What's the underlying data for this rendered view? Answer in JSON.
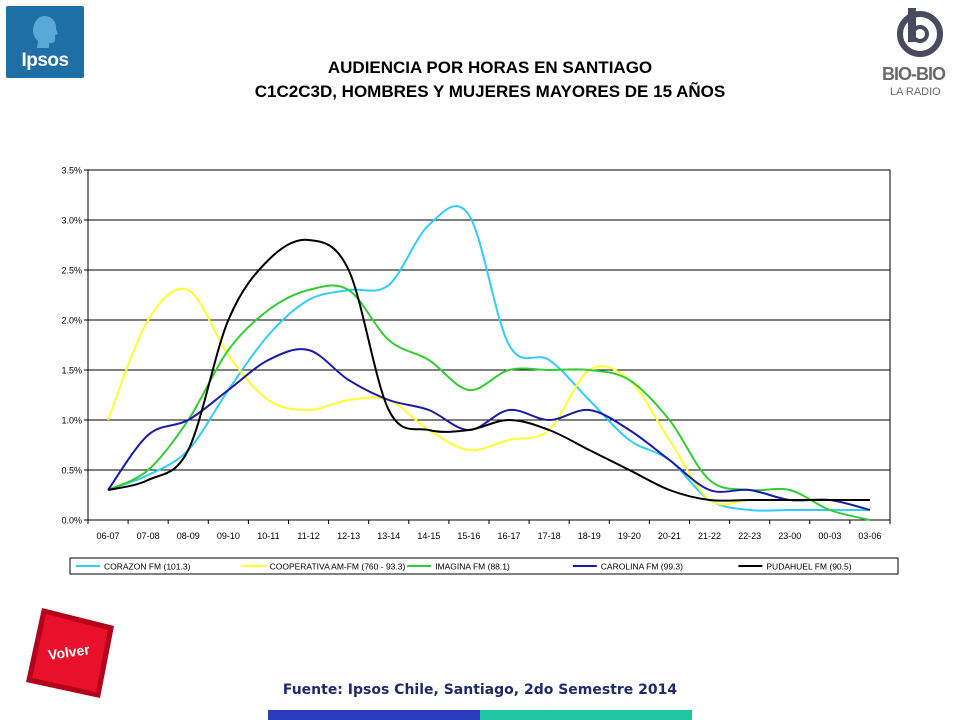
{
  "branding": {
    "ipsos_logo": "Ipsos",
    "biobio_name": "BIO-BIO",
    "biobio_tag": "LA RADIO"
  },
  "header": {
    "title_line1": "AUDIENCIA POR HORAS EN SANTIAGO",
    "title_line2": "C1C2C3D, HOMBRES Y MUJERES MAYORES DE 15 AÑOS"
  },
  "footer": {
    "source": "Fuente: Ipsos Chile, Santiago, 2do Semestre 2014",
    "back_button": "Volver"
  },
  "chart_data": {
    "type": "line",
    "title": "AUDIENCIA POR HORAS EN SANTIAGO",
    "xlabel": "",
    "ylabel": "",
    "ylim": [
      0,
      0.035
    ],
    "y_ticks": [
      "0.0%",
      "0.5%",
      "1.0%",
      "1.5%",
      "2.0%",
      "2.5%",
      "3.0%",
      "3.5%"
    ],
    "grid": true,
    "legend_position": "bottom",
    "categories": [
      "06-07",
      "07-08",
      "08-09",
      "09-10",
      "10-11",
      "11-12",
      "12-13",
      "13-14",
      "14-15",
      "15-16",
      "16-17",
      "17-18",
      "18-19",
      "19-20",
      "20-21",
      "21-22",
      "22-23",
      "23-00",
      "00-03",
      "03-06"
    ],
    "series": [
      {
        "name": "CORAZON FM (101.3)",
        "color": "#33ccff",
        "values": [
          0.003,
          0.0045,
          0.007,
          0.013,
          0.0185,
          0.022,
          0.023,
          0.0235,
          0.0295,
          0.0305,
          0.0175,
          0.016,
          0.012,
          0.008,
          0.006,
          0.002,
          0.001,
          0.001,
          0.001,
          0.001
        ]
      },
      {
        "name": "COOPERATIVA AM-FM (760 - 93.3)",
        "color": "#ffff33",
        "values": [
          0.01,
          0.02,
          0.023,
          0.0165,
          0.012,
          0.011,
          0.012,
          0.012,
          0.009,
          0.007,
          0.008,
          0.009,
          0.015,
          0.014,
          0.008,
          0.002,
          0.002,
          0.002,
          0.002,
          0.001
        ]
      },
      {
        "name": "IMAGINA FM (88.1)",
        "color": "#33cc33",
        "values": [
          0.003,
          0.005,
          0.01,
          0.017,
          0.021,
          0.023,
          0.023,
          0.018,
          0.016,
          0.013,
          0.015,
          0.015,
          0.015,
          0.014,
          0.01,
          0.004,
          0.003,
          0.003,
          0.001,
          0.0
        ]
      },
      {
        "name": "CAROLINA FM (99.3)",
        "color": "#1a1aa6",
        "values": [
          0.003,
          0.0085,
          0.01,
          0.013,
          0.016,
          0.017,
          0.014,
          0.012,
          0.011,
          0.009,
          0.011,
          0.01,
          0.011,
          0.009,
          0.006,
          0.003,
          0.003,
          0.002,
          0.002,
          0.001
        ]
      },
      {
        "name": "PUDAHUEL FM (90.5)",
        "color": "#000000",
        "values": [
          0.003,
          0.004,
          0.007,
          0.02,
          0.026,
          0.028,
          0.025,
          0.011,
          0.009,
          0.009,
          0.01,
          0.009,
          0.007,
          0.005,
          0.003,
          0.002,
          0.002,
          0.002,
          0.002,
          0.002
        ]
      }
    ]
  }
}
